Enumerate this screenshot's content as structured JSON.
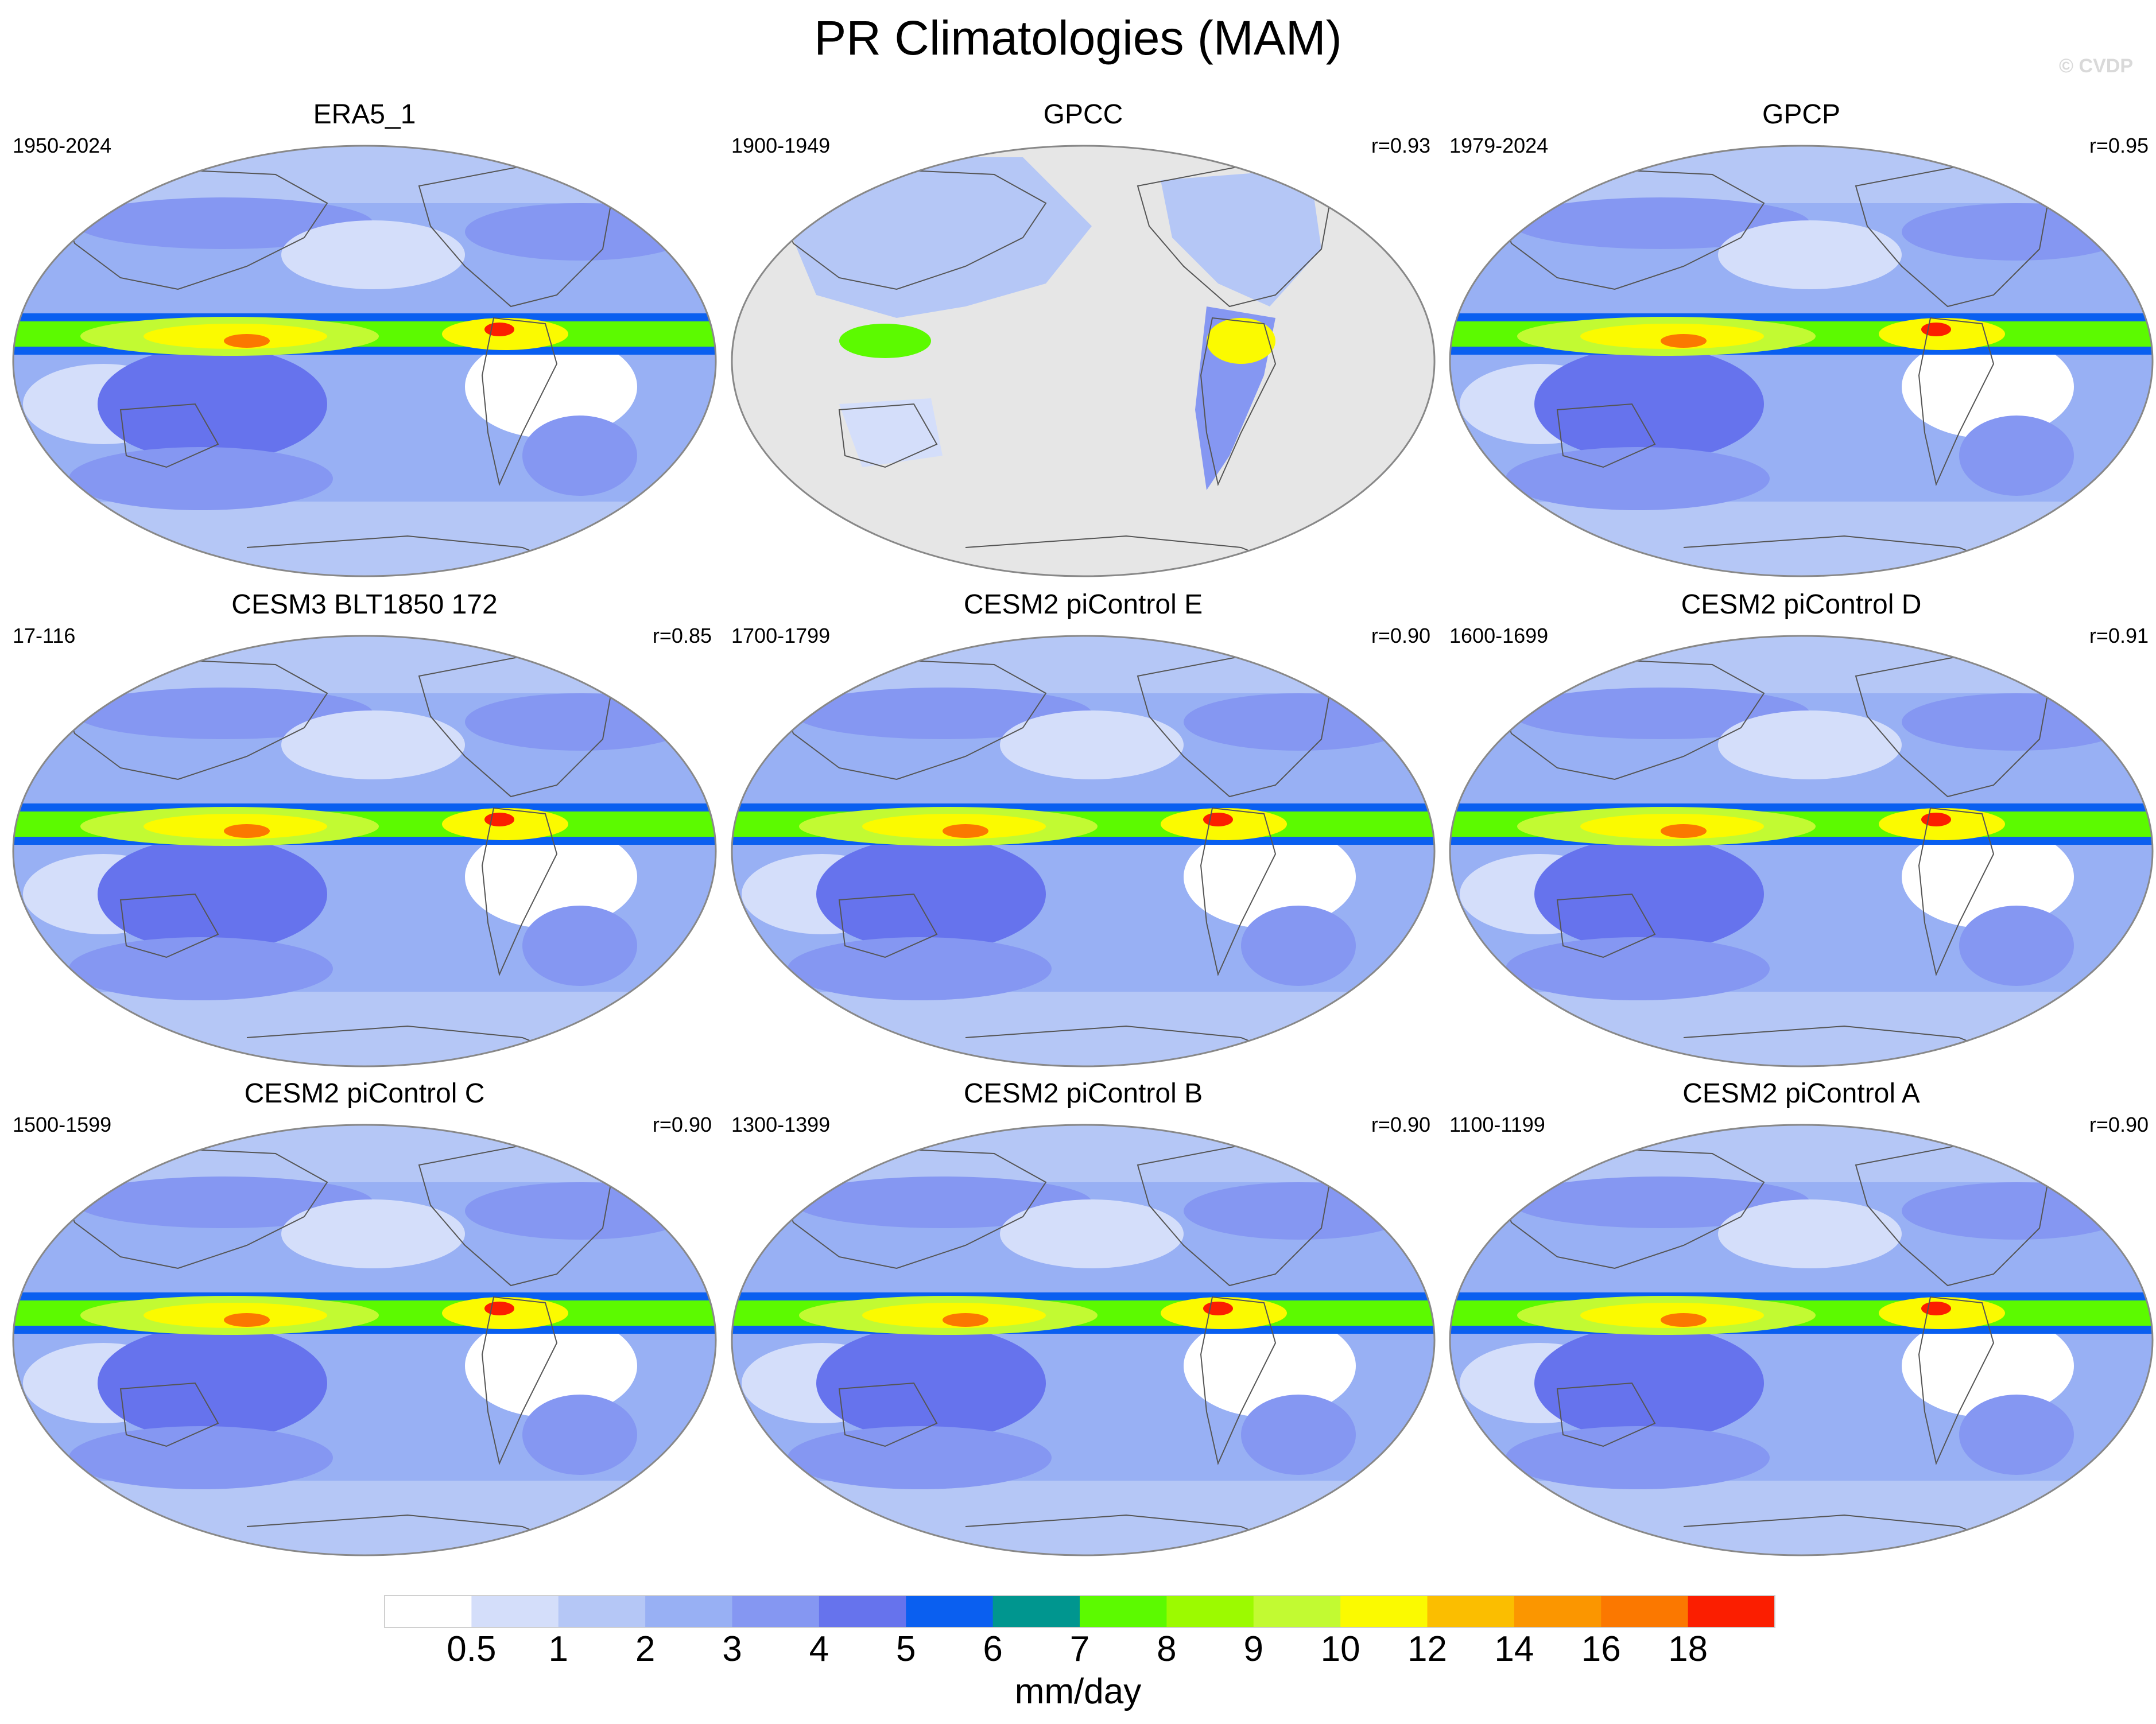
{
  "title": "PR Climatologies (MAM)",
  "credit": "© CVDP",
  "chart_data": [
    {
      "type": "heatmap",
      "title": "ERA5_1",
      "period": "1950-2024",
      "r": "",
      "gray_land_missing": false,
      "projection": "global, centered 180°"
    },
    {
      "type": "heatmap",
      "title": "GPCC",
      "period": "1900-1949",
      "r": "r=0.93",
      "gray_land_missing": true,
      "projection": "global, centered 180°"
    },
    {
      "type": "heatmap",
      "title": "GPCP",
      "period": "1979-2024",
      "r": "r=0.95",
      "gray_land_missing": false,
      "projection": "global, centered 180°"
    },
    {
      "type": "heatmap",
      "title": "CESM3 BLT1850 172",
      "period": "17-116",
      "r": "r=0.85",
      "gray_land_missing": false,
      "projection": "global, centered 180°"
    },
    {
      "type": "heatmap",
      "title": "CESM2 piControl E",
      "period": "1700-1799",
      "r": "r=0.90",
      "gray_land_missing": false,
      "projection": "global, centered 180°"
    },
    {
      "type": "heatmap",
      "title": "CESM2 piControl D",
      "period": "1600-1699",
      "r": "r=0.91",
      "gray_land_missing": false,
      "projection": "global, centered 180°"
    },
    {
      "type": "heatmap",
      "title": "CESM2 piControl C",
      "period": "1500-1599",
      "r": "r=0.90",
      "gray_land_missing": false,
      "projection": "global, centered 180°"
    },
    {
      "type": "heatmap",
      "title": "CESM2 piControl B",
      "period": "1300-1399",
      "r": "r=0.90",
      "gray_land_missing": false,
      "projection": "global, centered 180°"
    },
    {
      "type": "heatmap",
      "title": "CESM2 piControl A",
      "period": "1100-1199",
      "r": "r=0.90",
      "gray_land_missing": false,
      "projection": "global, centered 180°"
    }
  ],
  "colorbar": {
    "label": "mm/day",
    "ticks": [
      "0.5",
      "1",
      "2",
      "3",
      "4",
      "5",
      "6",
      "7",
      "8",
      "9",
      "10",
      "12",
      "14",
      "16",
      "18"
    ],
    "colors": [
      "#ffffff",
      "#d4defa",
      "#b5c7f6",
      "#98b0f4",
      "#8597f2",
      "#6673ed",
      "#0a5ff0",
      "#00968f",
      "#5cfa00",
      "#9cfa00",
      "#c2fa32",
      "#fbfa00",
      "#fbbe00",
      "#fb9600",
      "#fb7800",
      "#fb1e00"
    ]
  }
}
